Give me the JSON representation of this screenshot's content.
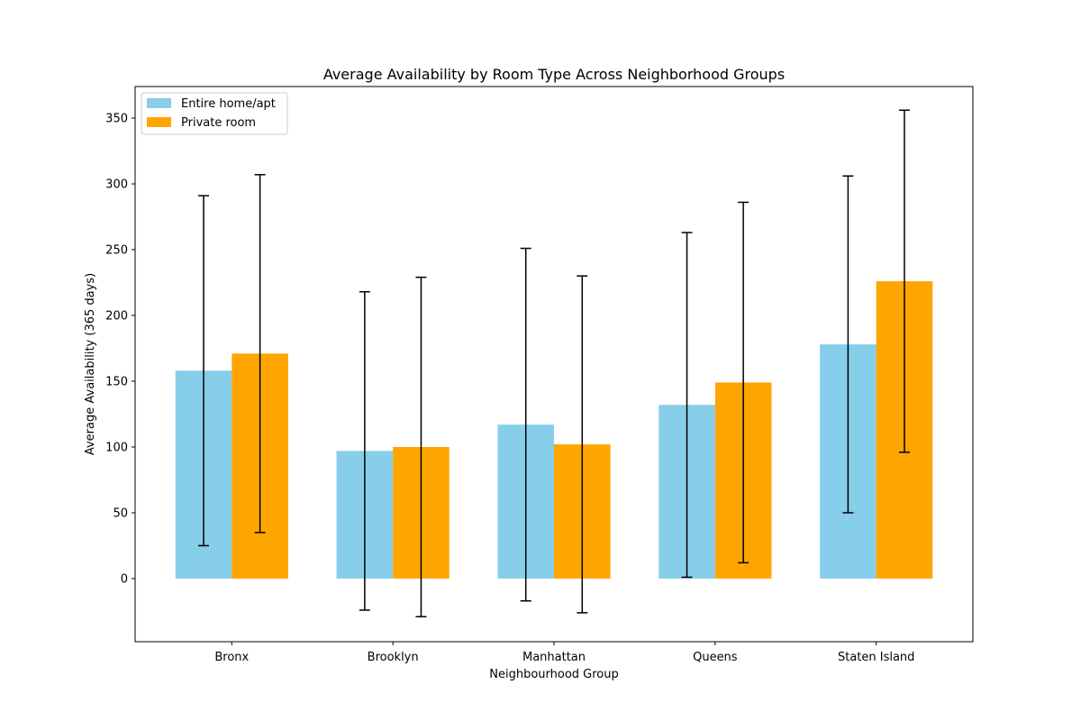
{
  "chart_data": {
    "type": "bar",
    "title": "Average Availability by Room Type Across Neighborhood Groups",
    "xlabel": "Neighbourhood Group",
    "ylabel": "Average Availability (365 days)",
    "categories": [
      "Bronx",
      "Brooklyn",
      "Manhattan",
      "Queens",
      "Staten Island"
    ],
    "ylim": [
      -48,
      374
    ],
    "yticks": [
      0,
      50,
      100,
      150,
      200,
      250,
      300,
      350
    ],
    "series": [
      {
        "name": "Entire home/apt",
        "color": "#87ceeb",
        "values": [
          158,
          97,
          117,
          132,
          178
        ],
        "error": [
          133,
          121,
          134,
          131,
          128
        ]
      },
      {
        "name": "Private room",
        "color": "#ffa500",
        "values": [
          171,
          100,
          102,
          149,
          226
        ],
        "error": [
          136,
          129,
          128,
          137,
          130
        ]
      }
    ],
    "legend_position": "upper-left",
    "grid": false
  }
}
